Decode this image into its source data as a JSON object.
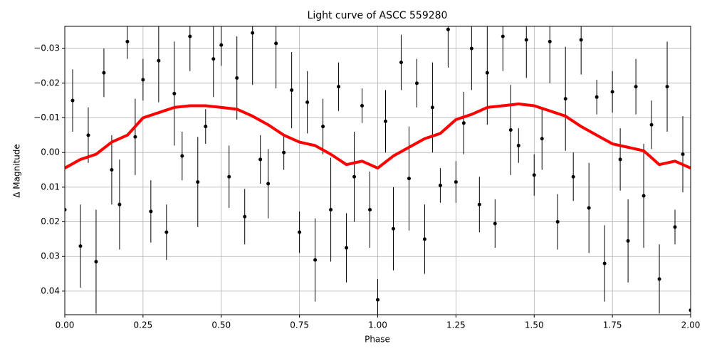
{
  "chart_data": {
    "type": "scatter",
    "title": "Light curve of ASCC 559280",
    "x_label": "Phase",
    "y_label": "Δ Magnitude",
    "xlim": [
      0,
      2
    ],
    "ylim": [
      0.0468,
      -0.0364
    ],
    "grid": true,
    "xticks": [
      {
        "value": 0,
        "label": "0.00"
      },
      0.25,
      {
        "value": 0.5,
        "label": "0.50"
      },
      0.75,
      {
        "value": 1,
        "label": "1.00"
      },
      1.25,
      {
        "value": 1.5,
        "label": "1.50"
      },
      1.75,
      {
        "value": 2,
        "label": "2.00"
      }
    ],
    "yticks": [
      {
        "value": -0.03,
        "label": "−0.03"
      },
      {
        "value": -0.02,
        "label": "−0.02"
      },
      {
        "value": -0.01,
        "label": "−0.01"
      },
      {
        "value": 0,
        "label": "0.00"
      },
      0.01,
      0.02,
      0.03,
      0.04
    ],
    "series": [
      {
        "kind": "errorbar",
        "color": "#000000",
        "x": [
          0,
          0.025,
          0.05,
          0.075,
          0.1,
          0.125,
          0.15,
          0.175,
          0.2,
          0.225,
          0.25,
          0.275,
          0.3,
          0.325,
          0.35,
          0.375,
          0.4,
          0.425,
          0.45,
          0.475,
          0.5,
          0.525,
          0.55,
          0.575,
          0.6,
          0.625,
          0.65,
          0.675,
          0.7,
          0.725,
          0.75,
          0.775,
          0.8,
          0.825,
          0.85,
          0.875,
          0.9,
          0.925,
          0.95,
          0.975,
          1,
          1.025,
          1.05,
          1.075,
          1.1,
          1.125,
          1.15,
          1.175,
          1.2,
          1.225,
          1.25,
          1.275,
          1.3,
          1.325,
          1.35,
          1.375,
          1.4,
          1.425,
          1.45,
          1.475,
          1.5,
          1.525,
          1.55,
          1.575,
          1.6,
          1.625,
          1.65,
          1.675,
          1.7,
          1.725,
          1.75,
          1.775,
          1.8,
          1.825,
          1.85,
          1.875,
          1.9,
          1.925,
          1.95,
          1.975,
          2
        ],
        "values": [
          0.0165,
          -0.015,
          0.027,
          -0.005,
          0.0315,
          -0.023,
          0.005,
          0.015,
          -0.032,
          -0.0045,
          -0.021,
          0.017,
          -0.0265,
          0.023,
          -0.017,
          0.001,
          -0.0335,
          0.0085,
          -0.0075,
          -0.027,
          -0.031,
          0.007,
          -0.0215,
          0.0185,
          -0.0345,
          0.002,
          0.009,
          -0.0315,
          0,
          -0.018,
          0.023,
          -0.0145,
          0.031,
          -0.0075,
          0.0165,
          -0.019,
          0.0275,
          0.007,
          -0.0135,
          0.0165,
          0.0425,
          -0.009,
          0.022,
          -0.026,
          0.0075,
          -0.02,
          0.025,
          -0.013,
          0.0095,
          -0.0355,
          0.0085,
          -0.0085,
          -0.03,
          0.015,
          -0.023,
          0.0205,
          -0.0335,
          -0.0065,
          -0.002,
          -0.0325,
          0.0065,
          -0.004,
          -0.032,
          0.02,
          -0.0155,
          0.007,
          -0.0325,
          0.016,
          -0.016,
          0.032,
          -0.0175,
          0.002,
          0.0255,
          -0.019,
          0.0125,
          -0.008,
          0.0365,
          -0.019,
          0.0215,
          0.0005,
          0.0455
        ],
        "errors": [
          0.006,
          0.009,
          0.012,
          0.008,
          0.015,
          0.007,
          0.01,
          0.013,
          0.005,
          0.011,
          0.006,
          0.009,
          0.012,
          0.008,
          0.015,
          0.007,
          0.01,
          0.013,
          0.005,
          0.011,
          0.006,
          0.009,
          0.012,
          0.008,
          0.015,
          0.007,
          0.01,
          0.013,
          0.005,
          0.011,
          0.006,
          0.009,
          0.012,
          0.008,
          0.015,
          0.007,
          0.01,
          0.013,
          0.005,
          0.011,
          0.006,
          0.009,
          0.012,
          0.008,
          0.015,
          0.007,
          0.01,
          0.013,
          0.005,
          0.011,
          0.006,
          0.009,
          0.012,
          0.008,
          0.015,
          0.007,
          0.01,
          0.013,
          0.005,
          0.011,
          0.006,
          0.009,
          0.012,
          0.008,
          0.015,
          0.007,
          0.01,
          0.013,
          0.005,
          0.011,
          0.006,
          0.009,
          0.012,
          0.008,
          0.015,
          0.007,
          0.01,
          0.013,
          0.005,
          0.011,
          0.006
        ]
      },
      {
        "kind": "line",
        "color": "#ff0000",
        "x": [
          0,
          0.05,
          0.1,
          0.15,
          0.2,
          0.25,
          0.3,
          0.35,
          0.4,
          0.45,
          0.5,
          0.55,
          0.6,
          0.65,
          0.7,
          0.75,
          0.8,
          0.85,
          0.9,
          0.95,
          1,
          1.05,
          1.1,
          1.15,
          1.2,
          1.25,
          1.3,
          1.35,
          1.4,
          1.45,
          1.5,
          1.55,
          1.6,
          1.65,
          1.7,
          1.75,
          1.8,
          1.85,
          1.9,
          1.95,
          2
        ],
        "values": [
          0.0045,
          0.002,
          0.0005,
          -0.003,
          -0.005,
          -0.01,
          -0.0115,
          -0.013,
          -0.0135,
          -0.0135,
          -0.013,
          -0.0125,
          -0.0105,
          -0.008,
          -0.005,
          -0.003,
          -0.002,
          0.0005,
          0.0035,
          0.0025,
          0.0045,
          0.001,
          -0.0015,
          -0.004,
          -0.0055,
          -0.0095,
          -0.011,
          -0.013,
          -0.0135,
          -0.014,
          -0.0135,
          -0.012,
          -0.0105,
          -0.0075,
          -0.005,
          -0.0025,
          -0.0015,
          -0.0005,
          0.0035,
          0.0025,
          0.0045
        ]
      }
    ]
  }
}
